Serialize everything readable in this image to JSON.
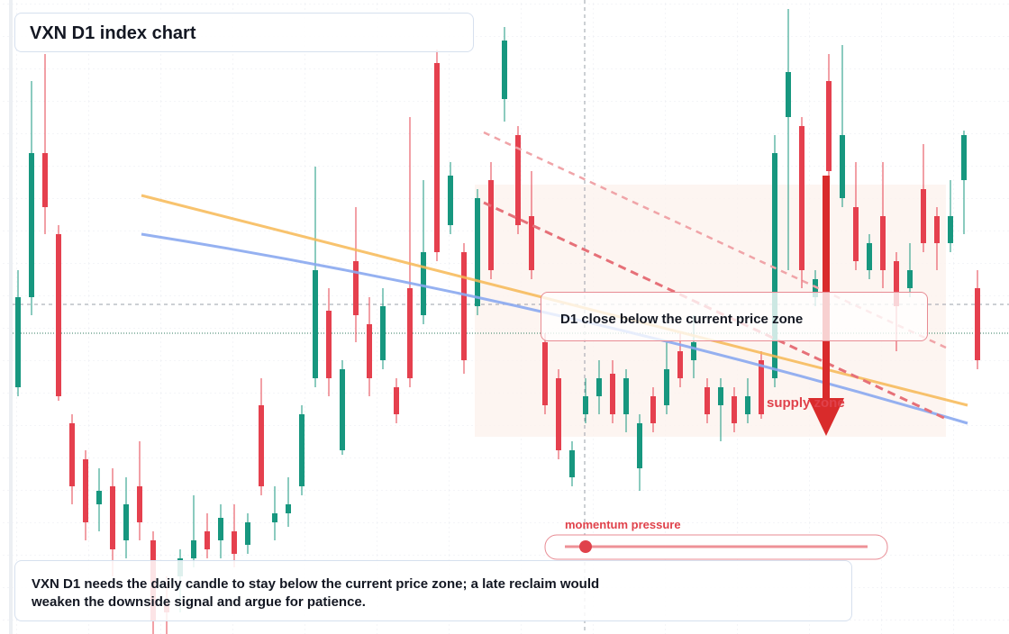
{
  "header": {
    "title": "VXN D1 index chart"
  },
  "chart_data": {
    "type": "candlestick",
    "ylim": [
      0,
      704
    ],
    "up_color": "#17977f",
    "down_color": "#e5404e",
    "candles": [
      [
        274,
        404,
        264,
        374
      ],
      [
        374,
        614,
        354,
        534
      ],
      [
        534,
        644,
        444,
        474
      ],
      [
        444,
        454,
        259,
        264
      ],
      [
        234,
        244,
        144,
        164
      ],
      [
        194,
        204,
        104,
        124
      ],
      [
        144,
        184,
        114,
        159
      ],
      [
        164,
        184,
        64,
        94
      ],
      [
        104,
        174,
        84,
        144
      ],
      [
        164,
        214,
        104,
        124
      ],
      [
        104,
        114,
        0,
        14
      ],
      [
        34,
        64,
        0,
        24
      ],
      [
        64,
        94,
        24,
        84
      ],
      [
        84,
        154,
        74,
        104
      ],
      [
        114,
        134,
        84,
        94
      ],
      [
        104,
        144,
        84,
        129
      ],
      [
        114,
        144,
        74,
        89
      ],
      [
        99,
        134,
        89,
        124
      ],
      [
        254,
        284,
        154,
        164
      ],
      [
        124,
        164,
        104,
        134
      ],
      [
        134,
        174,
        119,
        144
      ],
      [
        164,
        254,
        154,
        244
      ],
      [
        284,
        519,
        274,
        404
      ],
      [
        359,
        384,
        264,
        284
      ],
      [
        204,
        304,
        199,
        294
      ],
      [
        414,
        474,
        324,
        354
      ],
      [
        344,
        374,
        264,
        284
      ],
      [
        304,
        384,
        294,
        364
      ],
      [
        274,
        284,
        234,
        244
      ],
      [
        384,
        574,
        274,
        284
      ],
      [
        354,
        504,
        344,
        424
      ],
      [
        634,
        649,
        414,
        424
      ],
      [
        454,
        524,
        444,
        509
      ],
      [
        424,
        434,
        289,
        304
      ],
      [
        364,
        494,
        354,
        484
      ],
      [
        504,
        524,
        394,
        404
      ],
      [
        594,
        674,
        569,
        659
      ],
      [
        554,
        564,
        444,
        454
      ],
      [
        464,
        514,
        394,
        404
      ],
      [
        324,
        334,
        244,
        254
      ],
      [
        284,
        294,
        194,
        204
      ],
      [
        174,
        214,
        164,
        204
      ],
      [
        244,
        284,
        234,
        264
      ],
      [
        264,
        304,
        244,
        284
      ],
      [
        289,
        304,
        234,
        244
      ],
      [
        244,
        294,
        224,
        284
      ],
      [
        184,
        244,
        159,
        234
      ],
      [
        264,
        274,
        224,
        234
      ],
      [
        254,
        324,
        244,
        294
      ],
      [
        314,
        334,
        274,
        284
      ],
      [
        304,
        354,
        284,
        324
      ],
      [
        274,
        284,
        234,
        244
      ],
      [
        254,
        284,
        214,
        274
      ],
      [
        264,
        274,
        224,
        234
      ],
      [
        244,
        284,
        234,
        264
      ],
      [
        304,
        314,
        239,
        244
      ],
      [
        284,
        554,
        274,
        534
      ],
      [
        574,
        694,
        404,
        624
      ],
      [
        564,
        574,
        384,
        404
      ],
      [
        374,
        404,
        364,
        394
      ],
      [
        614,
        644,
        504,
        514
      ],
      [
        484,
        654,
        474,
        554
      ],
      [
        474,
        524,
        404,
        414
      ],
      [
        404,
        444,
        394,
        434
      ],
      [
        464,
        524,
        384,
        404
      ],
      [
        414,
        424,
        314,
        364
      ],
      [
        384,
        434,
        374,
        404
      ],
      [
        494,
        544,
        424,
        434
      ],
      [
        464,
        474,
        404,
        434
      ],
      [
        434,
        504,
        424,
        464
      ],
      [
        504,
        559,
        444,
        554
      ],
      [
        384,
        404,
        294,
        304
      ]
    ]
  },
  "annotations": {
    "callout": "D1 close below the current price zone",
    "zone_label": "supply zone",
    "gauge_label": "momentum pressure"
  },
  "footer": {
    "note": "VXN D1 needs the daily candle to stay below the current price zone; a late reclaim would weaken the downside signal and argue for patience."
  }
}
